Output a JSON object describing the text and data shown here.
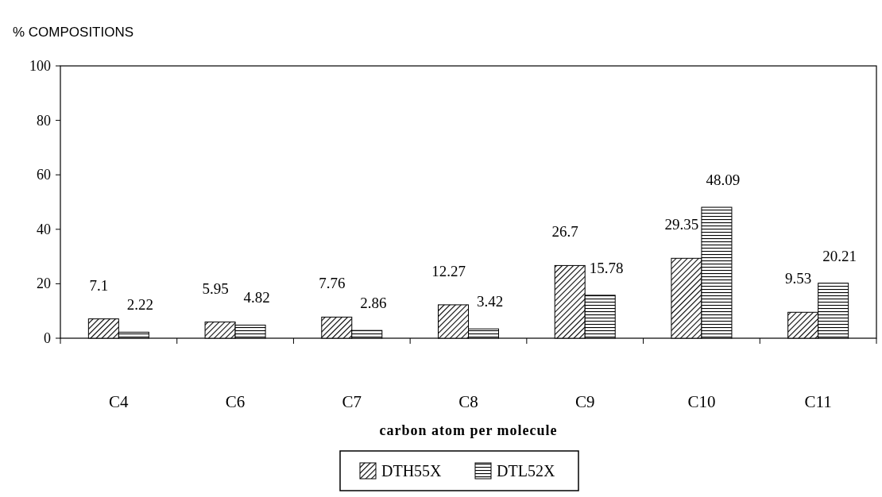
{
  "chart_data": {
    "type": "bar",
    "ylabel": "% COMPOSITIONS",
    "xlabel": "carbon atom per molecule",
    "categories": [
      "C4",
      "C6",
      "C7",
      "C8",
      "C9",
      "C10",
      "C11"
    ],
    "series": [
      {
        "name": "DTH55X",
        "color": "#000000",
        "values": [
          7.1,
          5.95,
          7.76,
          12.27,
          26.7,
          29.35,
          9.53
        ]
      },
      {
        "name": "DTL52X",
        "color": "#000000",
        "values": [
          2.22,
          4.82,
          2.86,
          3.42,
          15.78,
          48.09,
          20.21
        ]
      }
    ],
    "ylim": [
      0,
      100
    ],
    "yticks": [
      0,
      20,
      40,
      60,
      80,
      100
    ],
    "data_labels": true,
    "legend": "bottom"
  }
}
